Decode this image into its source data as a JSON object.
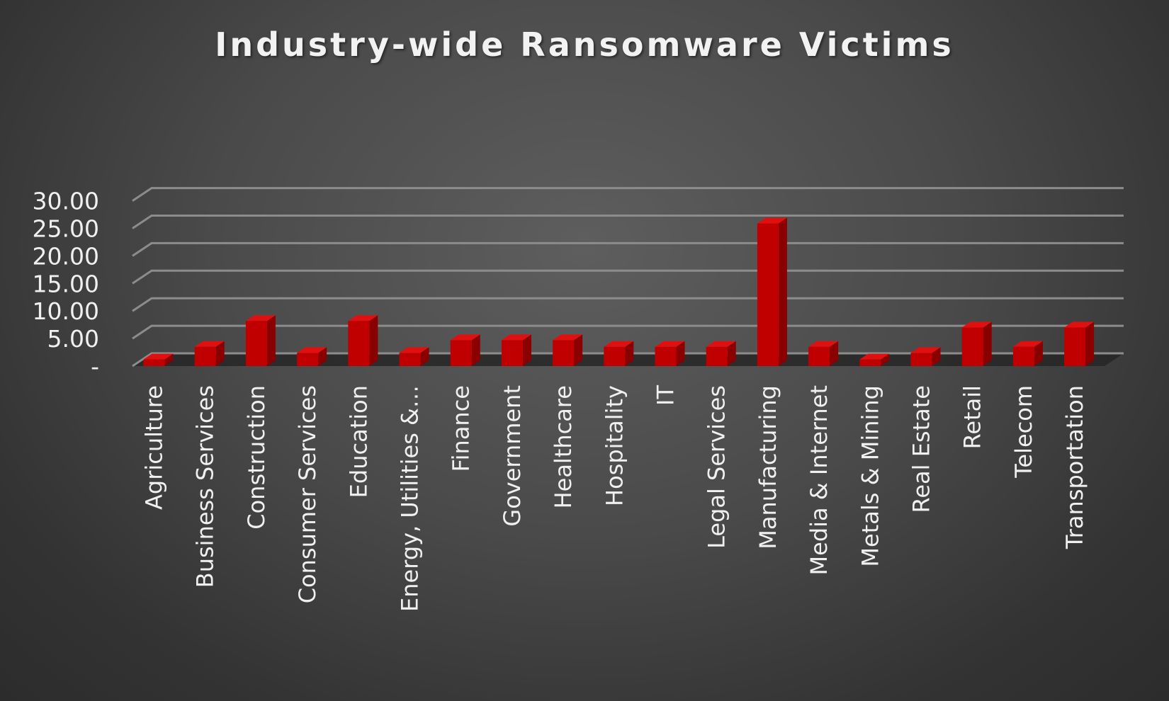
{
  "chart_data": {
    "type": "bar",
    "title": "Industry-wide Ransomware Victims",
    "xlabel": "",
    "ylabel": "",
    "ylim": [
      0,
      30
    ],
    "yticks": [
      "-",
      "5.00",
      "10.00",
      "15.00",
      "20.00",
      "25.00",
      "30.00"
    ],
    "grid": true,
    "legend": "none",
    "style": "3d-column",
    "colors": {
      "bar_front": "#c00000",
      "bar_side": "#8a0000",
      "bar_top": "#e01010",
      "gridline": "#8c8c8c",
      "floor": "#262626",
      "text": "#f0f0f0"
    },
    "categories": [
      "Agriculture",
      "Business Services",
      "Construction",
      "Consumer Services",
      "Education",
      "Energy, Utilities &…",
      "Finance",
      "Government",
      "Healthcare",
      "Hospitality",
      "IT",
      "Legal Services",
      "Manufacturing",
      "Media & Internet",
      "Metals & Mining",
      "Real Estate",
      "Retail",
      "Telecom",
      "Transportation"
    ],
    "values": [
      1.2,
      3.5,
      8.2,
      2.4,
      8.2,
      2.4,
      4.7,
      4.7,
      4.7,
      3.5,
      3.5,
      3.5,
      25.9,
      3.5,
      1.2,
      2.4,
      7.0,
      3.5,
      7.0
    ]
  }
}
